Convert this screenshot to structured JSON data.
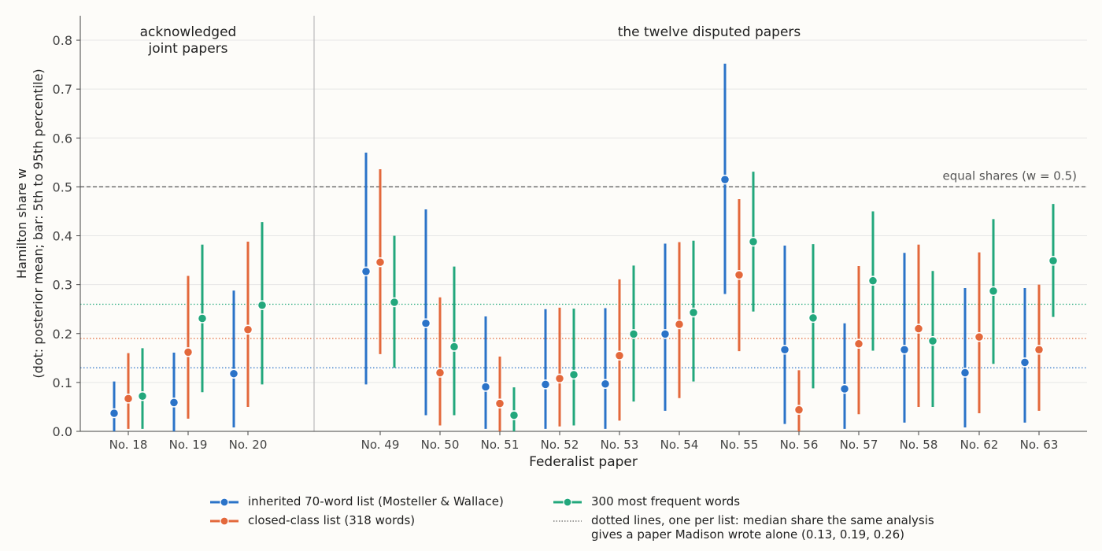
{
  "colors": {
    "mw": "#2b73c8",
    "closed": "#e3683b",
    "freq": "#22a77c",
    "equal_line": "#555555",
    "grid": "#e6e6e6",
    "divider": "#bbbbbb"
  },
  "chart_data": {
    "type": "errorbar",
    "xlabel": "Federalist paper",
    "ylabel_line1": "Hamilton share  w",
    "ylabel_line2": "(dot: posterior mean; bar: 5th to 95th percentile)",
    "ylim": [
      0,
      0.85
    ],
    "yticks": [
      "0.0",
      "0.1",
      "0.2",
      "0.3",
      "0.4",
      "0.5",
      "0.6",
      "0.7",
      "0.8"
    ],
    "grid": true,
    "group_labels": {
      "joint_line1": "acknowledged",
      "joint_line2": "joint papers",
      "disputed": "the twelve disputed papers"
    },
    "equal_line": {
      "value": 0.5,
      "label": "equal shares (w = 0.5)"
    },
    "madison_medians": [
      0.13,
      0.19,
      0.26
    ],
    "papers": [
      {
        "label": "No. 18",
        "group": "joint"
      },
      {
        "label": "No. 19",
        "group": "joint"
      },
      {
        "label": "No. 20",
        "group": "joint"
      },
      {
        "label": "No. 49",
        "group": "disputed"
      },
      {
        "label": "No. 50",
        "group": "disputed"
      },
      {
        "label": "No. 51",
        "group": "disputed"
      },
      {
        "label": "No. 52",
        "group": "disputed"
      },
      {
        "label": "No. 53",
        "group": "disputed"
      },
      {
        "label": "No. 54",
        "group": "disputed"
      },
      {
        "label": "No. 55",
        "group": "disputed"
      },
      {
        "label": "No. 56",
        "group": "disputed"
      },
      {
        "label": "No. 57",
        "group": "disputed"
      },
      {
        "label": "No. 58",
        "group": "disputed"
      },
      {
        "label": "No. 62",
        "group": "disputed"
      },
      {
        "label": "No. 63",
        "group": "disputed"
      }
    ],
    "series": [
      {
        "name": "inherited 70-word list (Mosteller & Wallace)",
        "color_key": "mw",
        "mean": [
          0.037,
          0.059,
          0.118,
          0.327,
          0.221,
          0.091,
          0.096,
          0.097,
          0.199,
          0.515,
          0.167,
          0.087,
          0.167,
          0.12,
          0.141
        ],
        "low": [
          0.0,
          0.0,
          0.008,
          0.096,
          0.033,
          0.005,
          0.005,
          0.005,
          0.042,
          0.281,
          0.015,
          0.005,
          0.018,
          0.008,
          0.018
        ],
        "high": [
          0.102,
          0.161,
          0.288,
          0.57,
          0.454,
          0.235,
          0.25,
          0.252,
          0.384,
          0.752,
          0.38,
          0.221,
          0.365,
          0.293,
          0.293
        ]
      },
      {
        "name": "closed-class list (318 words)",
        "color_key": "closed",
        "mean": [
          0.067,
          0.162,
          0.208,
          0.346,
          0.12,
          0.057,
          0.108,
          0.155,
          0.219,
          0.32,
          0.044,
          0.179,
          0.21,
          0.193,
          0.167
        ],
        "low": [
          0.005,
          0.026,
          0.05,
          0.158,
          0.012,
          0.0,
          0.01,
          0.022,
          0.068,
          0.164,
          0.0,
          0.035,
          0.05,
          0.037,
          0.042
        ],
        "high": [
          0.16,
          0.318,
          0.388,
          0.536,
          0.274,
          0.153,
          0.253,
          0.311,
          0.387,
          0.475,
          0.125,
          0.338,
          0.382,
          0.366,
          0.3
        ]
      },
      {
        "name": "300 most frequent words",
        "color_key": "freq",
        "mean": [
          0.072,
          0.231,
          0.258,
          0.264,
          0.173,
          0.033,
          0.116,
          0.199,
          0.243,
          0.388,
          0.232,
          0.308,
          0.185,
          0.287,
          0.349
        ],
        "low": [
          0.005,
          0.08,
          0.096,
          0.13,
          0.033,
          0.0,
          0.012,
          0.061,
          0.102,
          0.245,
          0.088,
          0.165,
          0.05,
          0.138,
          0.234
        ],
        "high": [
          0.17,
          0.382,
          0.428,
          0.4,
          0.337,
          0.09,
          0.251,
          0.339,
          0.39,
          0.531,
          0.383,
          0.45,
          0.328,
          0.434,
          0.465
        ]
      }
    ],
    "legend": {
      "madison_note": "dotted lines, one per list: median share the same analysis\ngives a paper Madison wrote alone (0.13, 0.19, 0.26)"
    }
  }
}
